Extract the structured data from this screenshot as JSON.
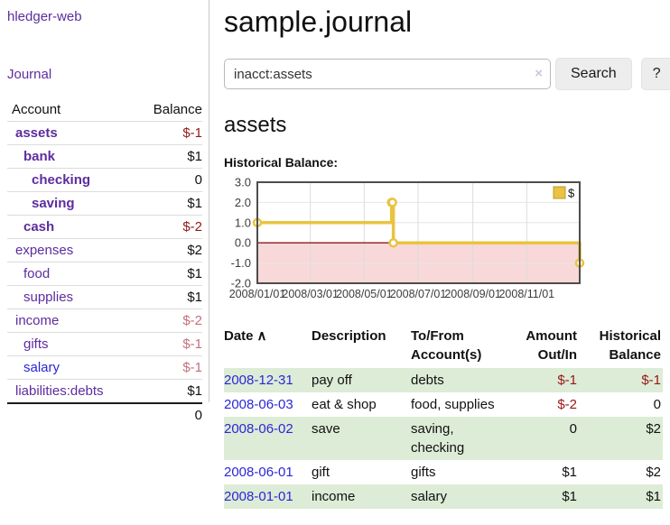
{
  "app": {
    "title": "hledger-web",
    "nav_journal": "Journal"
  },
  "sidebar": {
    "header": {
      "account": "Account",
      "balance": "Balance"
    },
    "accounts": [
      {
        "name": "assets",
        "balance": "$-1"
      },
      {
        "name": "bank",
        "balance": "$1"
      },
      {
        "name": "checking",
        "balance": "0"
      },
      {
        "name": "saving",
        "balance": "$1"
      },
      {
        "name": "cash",
        "balance": "$-2"
      },
      {
        "name": "expenses",
        "balance": "$2"
      },
      {
        "name": "food",
        "balance": "$1"
      },
      {
        "name": "supplies",
        "balance": "$1"
      },
      {
        "name": "income",
        "balance": "$-2"
      },
      {
        "name": "gifts",
        "balance": "$-1"
      },
      {
        "name": "salary",
        "balance": "$-1"
      },
      {
        "name": "liabilities:debts",
        "balance": "$1"
      }
    ],
    "total": "0"
  },
  "main": {
    "title": "sample.journal",
    "search": {
      "value": "inacct:assets",
      "clear_icon": "×",
      "search_button": "Search",
      "help_button": "?"
    },
    "account_heading": "assets",
    "chart_label": "Historical Balance:"
  },
  "chart_data": {
    "type": "line",
    "title": "Historical Balance:",
    "series": [
      {
        "name": "$",
        "color": "#e9c341",
        "steps": true,
        "points": [
          [
            "2008-01-01",
            1
          ],
          [
            "2008-06-01",
            2
          ],
          [
            "2008-06-02",
            2
          ],
          [
            "2008-06-03",
            0
          ],
          [
            "2008-12-31",
            -1
          ]
        ]
      }
    ],
    "x_range": [
      "2008-01-01",
      "2008-12-31"
    ],
    "ylim": [
      -2,
      3
    ],
    "y_ticks": [
      3.0,
      2.0,
      1.0,
      0.0,
      -1.0,
      -2.0
    ],
    "x_ticks": [
      "2008/01/01",
      "2008/03/01",
      "2008/05/01",
      "2008/07/01",
      "2008/09/01",
      "2008/11/01"
    ],
    "grid": true,
    "legend": {
      "label": "$",
      "position": "top-right"
    },
    "negative_region_color": "#f8d8d8",
    "zero_line_color": "#8b1a1a",
    "border_color": "#4d4d4d"
  },
  "register": {
    "columns": {
      "date": "Date",
      "sort_icon": "∧",
      "description": "Description",
      "accounts": "To/From\nAccount(s)",
      "amount": "Amount\nOut/In",
      "balance": "Historical\nBalance"
    },
    "rows": [
      {
        "date": "2008-12-31",
        "description": "pay off",
        "accounts": "debts",
        "amount": "$-1",
        "balance": "$-1"
      },
      {
        "date": "2008-06-03",
        "description": "eat & shop",
        "accounts": "food, supplies",
        "amount": "$-2",
        "balance": "0"
      },
      {
        "date": "2008-06-02",
        "description": "save",
        "accounts": "saving,\nchecking",
        "amount": "0",
        "balance": "$2"
      },
      {
        "date": "2008-06-01",
        "description": "gift",
        "accounts": "gifts",
        "amount": "$1",
        "balance": "$2"
      },
      {
        "date": "2008-01-01",
        "description": "income",
        "accounts": "salary",
        "amount": "$1",
        "balance": "$1"
      }
    ]
  },
  "colors": {
    "link_purple": "#5c2d9e",
    "link_blue": "#2b26d8",
    "negative_dark": "#8f1a1a",
    "negative_light": "#c4717c",
    "row_green": "#ddecd6",
    "chart_line_gold": "#e9c341"
  }
}
